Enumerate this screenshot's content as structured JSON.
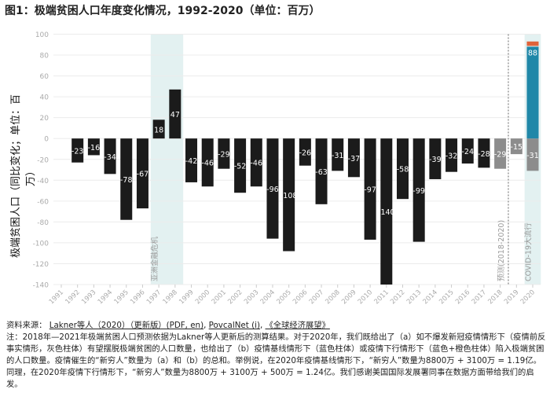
{
  "title": "图1：极端贫困人口年度变化情况，1992-2020（单位：百万）",
  "chart_data": {
    "type": "bar",
    "title": "图1：极端贫困人口年度变化情况，1992-2020（单位：百万）",
    "ylabel": "极端贫困人口（同比变化；单位：百万）",
    "xlabel": "",
    "ylim": [
      -140,
      100
    ],
    "yticks": [
      100,
      80,
      60,
      40,
      20,
      0,
      -20,
      -40,
      -60,
      -80,
      -100,
      -120,
      -140
    ],
    "grid": true,
    "categories": [
      "1991",
      "1992",
      "1993",
      "1994",
      "1995",
      "1996",
      "1997",
      "1998",
      "1999",
      "2000",
      "2001",
      "2002",
      "2003",
      "2004",
      "2005",
      "2006",
      "2007",
      "2008",
      "2009",
      "2010",
      "2011",
      "2012",
      "2013",
      "2014",
      "2015",
      "2016",
      "2017",
      "2018",
      "2019",
      "2020"
    ],
    "values": [
      null,
      -23,
      -16,
      -34,
      -78,
      -67,
      18,
      47,
      -42,
      -46,
      -29,
      -52,
      -46,
      -96,
      -108,
      -26,
      -63,
      -31,
      -37,
      -97,
      -140,
      -58,
      -99,
      -39,
      -32,
      -24,
      -28,
      -29,
      -15,
      -31
    ],
    "stacked_2020": [
      {
        "value": 88,
        "color": "#1f87a8",
        "label": "88"
      },
      {
        "value": 5,
        "color": "#e0633a",
        "label": ""
      }
    ],
    "colors": {
      "actual": "#1b1b1b",
      "projection": "#8c8c8c",
      "baseline": "#1f87a8",
      "downside": "#e0633a",
      "highlight": "#e3f1f1"
    },
    "projection_from": "2018",
    "annotations": [
      {
        "text": "亚洲金融危机",
        "years": [
          "1997",
          "1998"
        ]
      },
      {
        "text": "预测(2018-2020)",
        "year": "2018"
      },
      {
        "text": "COVID-19大流行",
        "years": [
          "2020"
        ]
      }
    ]
  },
  "notes": {
    "source_label": "资料来源：",
    "source_links": [
      "Lakner等人（2020）（更新版）(PDF, en)",
      "PovcalNet (i)",
      "《全球经济展望》"
    ],
    "note": "注：2018年—2021年极端贫困人口预测依据为Lakner等人更新后的测算结果。对于2020年，我们既给出了（a）如不爆发新冠疫情情形下（疫情前反事实情形，灰色柱体）有望摆脱极端贫困的人口数量，也给出了（b）疫情基线情形下（蓝色柱体）或疫情下行情形下（蓝色+橙色柱体）陷入极端贫困的人口数量。疫情催生的“新穷人”数量为（a）和（b）的总和。举例说，在2020年疫情基线情形下，“新穷人”数量为8800万 + 3100万 = 1.19亿。同理，在2020年疫情下行情形下，“新穷人”数量为8800万 + 3100万 + 500万 = 1.24亿。我们感谢美国国际发展署同事在数据方面带给我们的启发。"
  }
}
